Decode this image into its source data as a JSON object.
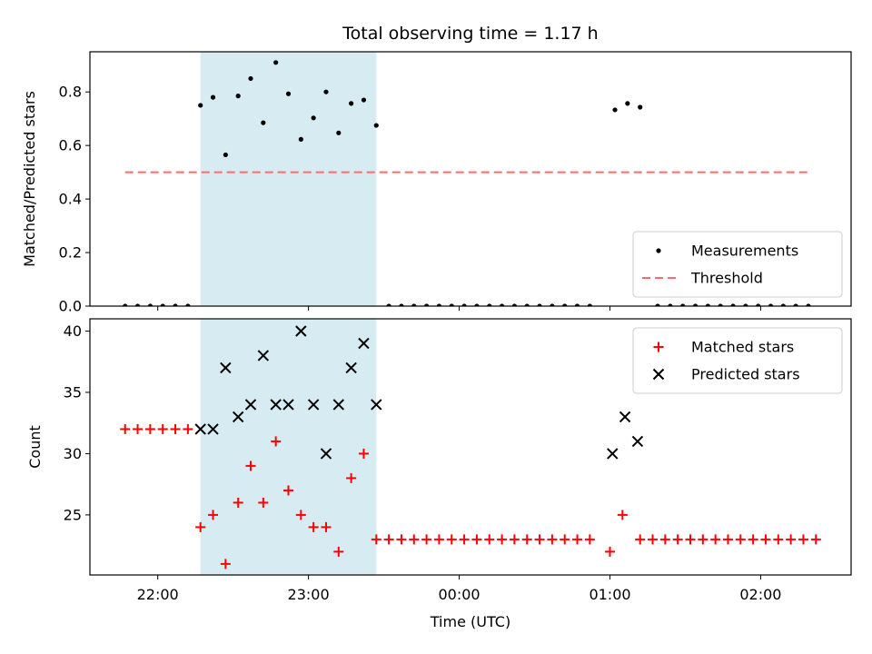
{
  "chart_data": {
    "title": "Total observing time = 1.17 h",
    "xlabel": "Time (UTC)",
    "x_tick_labels": [
      "22:00",
      "23:00",
      "00:00",
      "01:00",
      "02:00"
    ],
    "x_tick_minutes": [
      0,
      60,
      120,
      180,
      240
    ],
    "x_range_minutes": [
      -27,
      276
    ],
    "shaded_region_minutes": [
      17,
      87
    ],
    "colors": {
      "shade": "#add8e6",
      "measurements": "#000000",
      "threshold": "#ff6b6b",
      "matched": "#ff0000",
      "predicted": "#000000"
    },
    "panels": [
      {
        "type": "scatter",
        "ylabel": "Matched/Predicted stars",
        "ylim": [
          0,
          0.95
        ],
        "y_ticks": [
          0.0,
          0.2,
          0.4,
          0.6,
          0.8
        ],
        "y_tick_labels": [
          "0.0",
          "0.2",
          "0.4",
          "0.6",
          "0.8"
        ],
        "legend_position": "bottom-right",
        "threshold": {
          "name": "Threshold",
          "value": 0.5,
          "x_range_minutes": [
            -13,
            260
          ]
        },
        "series": [
          {
            "name": "Measurements",
            "marker": "dot",
            "points": [
              [
                -13,
                0
              ],
              [
                -8,
                0
              ],
              [
                -3,
                0
              ],
              [
                2,
                0
              ],
              [
                7,
                0
              ],
              [
                12,
                0
              ],
              [
                17,
                0.75
              ],
              [
                22,
                0.78
              ],
              [
                27,
                0.565
              ],
              [
                32,
                0.785
              ],
              [
                37,
                0.85
              ],
              [
                42,
                0.685
              ],
              [
                47,
                0.91
              ],
              [
                52,
                0.793
              ],
              [
                57,
                0.623
              ],
              [
                62,
                0.703
              ],
              [
                67,
                0.8
              ],
              [
                72,
                0.647
              ],
              [
                77,
                0.757
              ],
              [
                82,
                0.77
              ],
              [
                87,
                0.675
              ],
              [
                92,
                0
              ],
              [
                97,
                0
              ],
              [
                102,
                0
              ],
              [
                107,
                0
              ],
              [
                112,
                0
              ],
              [
                117,
                0
              ],
              [
                122,
                0
              ],
              [
                127,
                0
              ],
              [
                132,
                0
              ],
              [
                137,
                0
              ],
              [
                142,
                0
              ],
              [
                147,
                0
              ],
              [
                152,
                0
              ],
              [
                157,
                0
              ],
              [
                162,
                0
              ],
              [
                167,
                0
              ],
              [
                172,
                0
              ],
              [
                182,
                0.733
              ],
              [
                187,
                0.757
              ],
              [
                192,
                0.743
              ],
              [
                199,
                0
              ],
              [
                204,
                0
              ],
              [
                209,
                0
              ],
              [
                214,
                0
              ],
              [
                219,
                0
              ],
              [
                224,
                0
              ],
              [
                229,
                0
              ],
              [
                234,
                0
              ],
              [
                239,
                0
              ],
              [
                244,
                0
              ],
              [
                249,
                0
              ],
              [
                254,
                0
              ],
              [
                259,
                0
              ]
            ]
          }
        ]
      },
      {
        "type": "scatter",
        "ylabel": "Count",
        "ylim": [
          20.1,
          41.0
        ],
        "y_ticks": [
          25,
          30,
          35,
          40
        ],
        "y_tick_labels": [
          "25",
          "30",
          "35",
          "40"
        ],
        "legend_position": "top-right",
        "series": [
          {
            "name": "Matched stars",
            "marker": "plus",
            "points": [
              [
                -13,
                32
              ],
              [
                -8,
                32
              ],
              [
                -3,
                32
              ],
              [
                2,
                32
              ],
              [
                7,
                32
              ],
              [
                12,
                32
              ],
              [
                17,
                24
              ],
              [
                22,
                25
              ],
              [
                27,
                21
              ],
              [
                32,
                26
              ],
              [
                37,
                29
              ],
              [
                42,
                26
              ],
              [
                47,
                31
              ],
              [
                52,
                27
              ],
              [
                57,
                25
              ],
              [
                62,
                24
              ],
              [
                67,
                24
              ],
              [
                72,
                22
              ],
              [
                77,
                28
              ],
              [
                82,
                30
              ],
              [
                87,
                23
              ],
              [
                92,
                23
              ],
              [
                97,
                23
              ],
              [
                102,
                23
              ],
              [
                107,
                23
              ],
              [
                112,
                23
              ],
              [
                117,
                23
              ],
              [
                122,
                23
              ],
              [
                127,
                23
              ],
              [
                132,
                23
              ],
              [
                137,
                23
              ],
              [
                142,
                23
              ],
              [
                147,
                23
              ],
              [
                152,
                23
              ],
              [
                157,
                23
              ],
              [
                162,
                23
              ],
              [
                167,
                23
              ],
              [
                172,
                23
              ],
              [
                180,
                22
              ],
              [
                185,
                25
              ],
              [
                192,
                23
              ],
              [
                197,
                23
              ],
              [
                202,
                23
              ],
              [
                207,
                23
              ],
              [
                212,
                23
              ],
              [
                217,
                23
              ],
              [
                222,
                23
              ],
              [
                227,
                23
              ],
              [
                232,
                23
              ],
              [
                237,
                23
              ],
              [
                242,
                23
              ],
              [
                247,
                23
              ],
              [
                252,
                23
              ],
              [
                257,
                23
              ],
              [
                262,
                23
              ]
            ]
          },
          {
            "name": "Predicted stars",
            "marker": "x",
            "points": [
              [
                17,
                32
              ],
              [
                22,
                32
              ],
              [
                27,
                37
              ],
              [
                32,
                33
              ],
              [
                37,
                34
              ],
              [
                42,
                38
              ],
              [
                47,
                34
              ],
              [
                52,
                34
              ],
              [
                57,
                40
              ],
              [
                62,
                34
              ],
              [
                67,
                30
              ],
              [
                72,
                34
              ],
              [
                77,
                37
              ],
              [
                82,
                39
              ],
              [
                87,
                34
              ],
              [
                181,
                30
              ],
              [
                186,
                33
              ],
              [
                191,
                31
              ]
            ]
          }
        ]
      }
    ]
  }
}
